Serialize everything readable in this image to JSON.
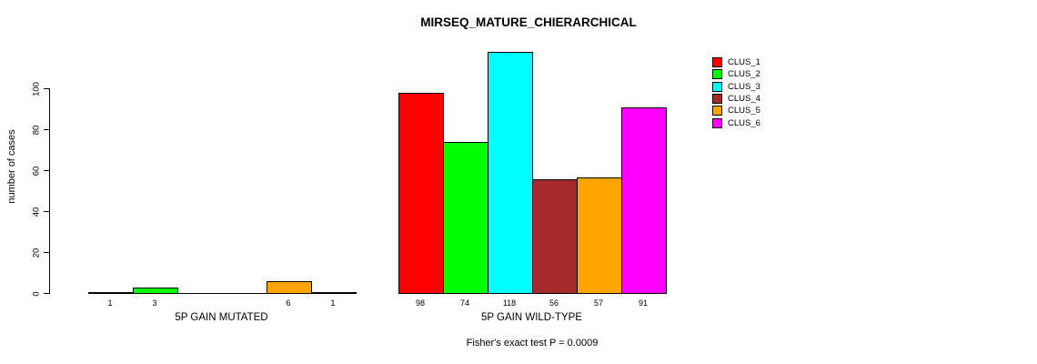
{
  "title": "MIRSEQ_MATURE_CHIERARCHICAL",
  "footnote": "Fisher's exact test P = 0.0009",
  "chart_data": {
    "type": "bar",
    "title": "MIRSEQ_MATURE_CHIERARCHICAL",
    "ylabel": "number of cases",
    "xlabel": "",
    "ylim": [
      0,
      100
    ],
    "yticks": [
      0,
      20,
      40,
      60,
      80,
      100
    ],
    "grid": false,
    "bar_value_labels": true,
    "zero_values_unlabeled": true,
    "series_names": [
      "CLUS_1",
      "CLUS_2",
      "CLUS_3",
      "CLUS_4",
      "CLUS_5",
      "CLUS_6"
    ],
    "colors": [
      "#FF0000",
      "#00FF00",
      "#00FFFF",
      "#A52A2A",
      "#FFA500",
      "#FF00FF"
    ],
    "groups": [
      {
        "label": "5P GAIN MUTATED",
        "values": [
          1,
          3,
          0,
          0,
          6,
          1
        ]
      },
      {
        "label": "5P GAIN WILD-TYPE",
        "values": [
          98,
          74,
          118,
          56,
          57,
          91
        ]
      }
    ],
    "legend": {
      "position": "top-right",
      "entries": [
        {
          "label": "CLUS_1",
          "color": "#FF0000"
        },
        {
          "label": "CLUS_2",
          "color": "#00FF00"
        },
        {
          "label": "CLUS_3",
          "color": "#00FFFF"
        },
        {
          "label": "CLUS_4",
          "color": "#A52A2A"
        },
        {
          "label": "CLUS_5",
          "color": "#FFA500"
        },
        {
          "label": "CLUS_6",
          "color": "#FF00FF"
        }
      ]
    },
    "annotation": "Fisher's exact test P = 0.0009"
  }
}
